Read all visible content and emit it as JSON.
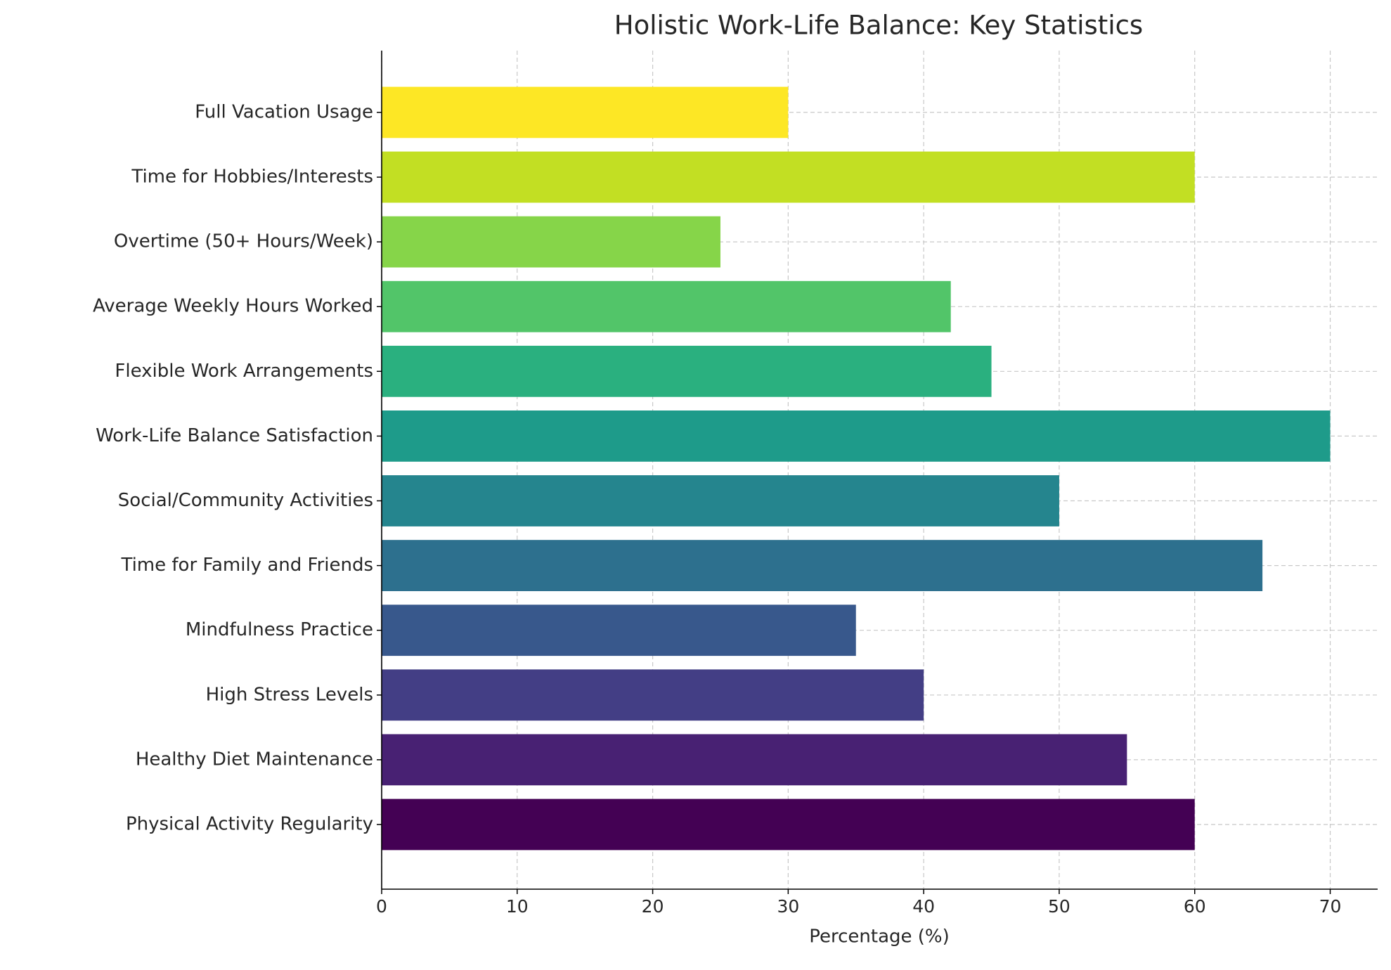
{
  "chart_data": {
    "type": "bar",
    "orientation": "horizontal",
    "title": "Holistic Work-Life Balance: Key Statistics",
    "x_label": "Percentage (%)",
    "categories": [
      "Physical Activity Regularity",
      "Healthy Diet Maintenance",
      "High Stress Levels",
      "Mindfulness Practice",
      "Time for Family and Friends",
      "Social/Community Activities",
      "Work-Life Balance Satisfaction",
      "Flexible Work Arrangements",
      "Average Weekly Hours Worked",
      "Overtime (50+ Hours/Week)",
      "Time for Hobbies/Interests",
      "Full Vacation Usage"
    ],
    "values": [
      60,
      55,
      40,
      35,
      65,
      50,
      70,
      45,
      42,
      25,
      60,
      30
    ],
    "colors": [
      "#440154",
      "#482173",
      "#433e85",
      "#38588c",
      "#2d708e",
      "#25858e",
      "#1e9b8a",
      "#2ab07f",
      "#52c569",
      "#86d549",
      "#c2df23",
      "#fde725"
    ],
    "xlim": [
      0,
      73.5
    ],
    "xticks": [
      0,
      10,
      20,
      30,
      40,
      50,
      60,
      70
    ],
    "grid": true
  }
}
